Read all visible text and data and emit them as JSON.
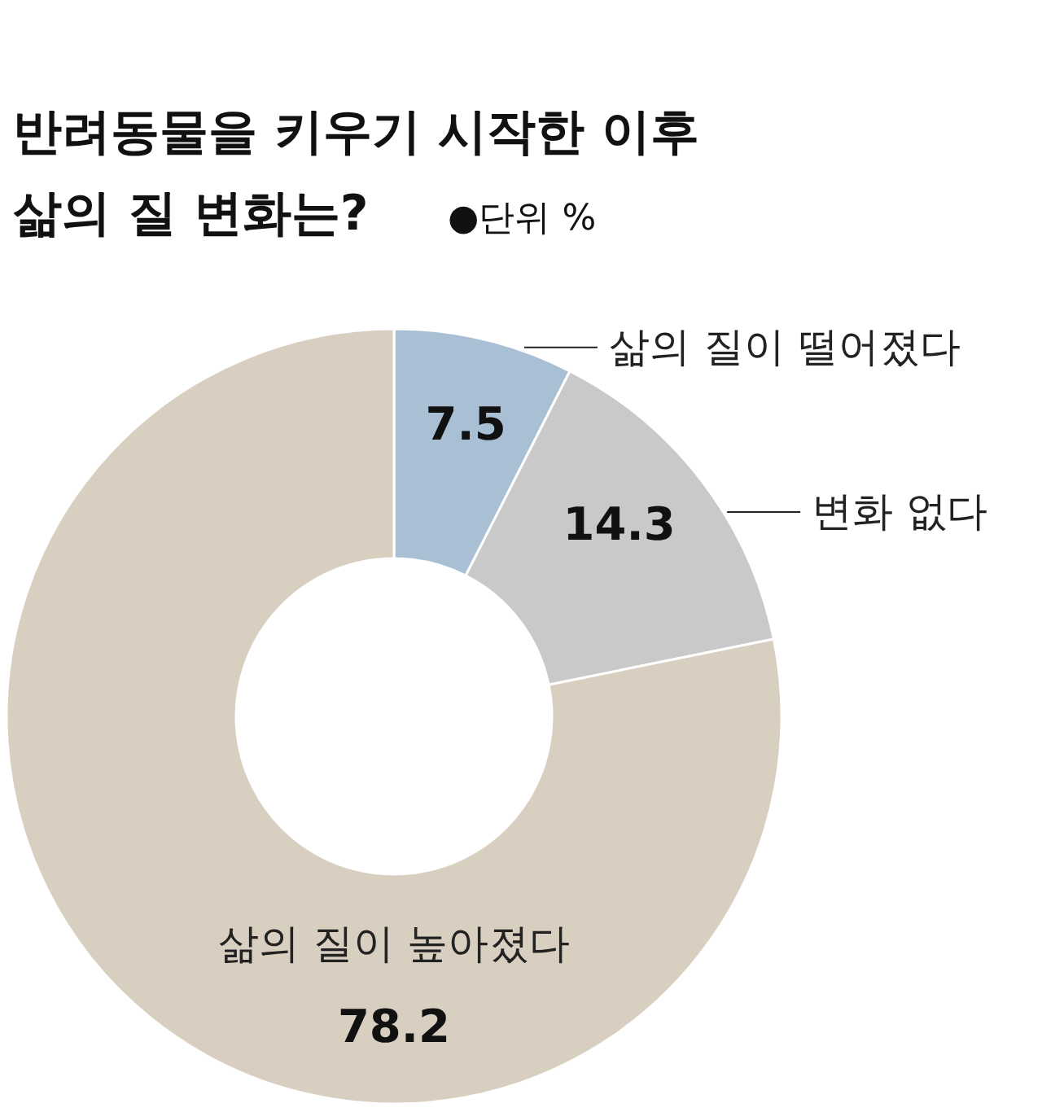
{
  "chart_data": {
    "type": "donut",
    "title": "반려동물을 키우기 시작한 이후\n삶의 질 변화는?",
    "subtitle": "●단위 %",
    "categories": [
      "삶의 질이 떨어졌다",
      "변화 없다",
      "삶의 질이 높아졌다"
    ],
    "values": [
      7.5,
      14.3,
      78.2
    ],
    "colors": [
      "#a9c0d4",
      "#c9c9c9",
      "#d8cfc0"
    ],
    "data_labels": true,
    "legend": false
  }
}
